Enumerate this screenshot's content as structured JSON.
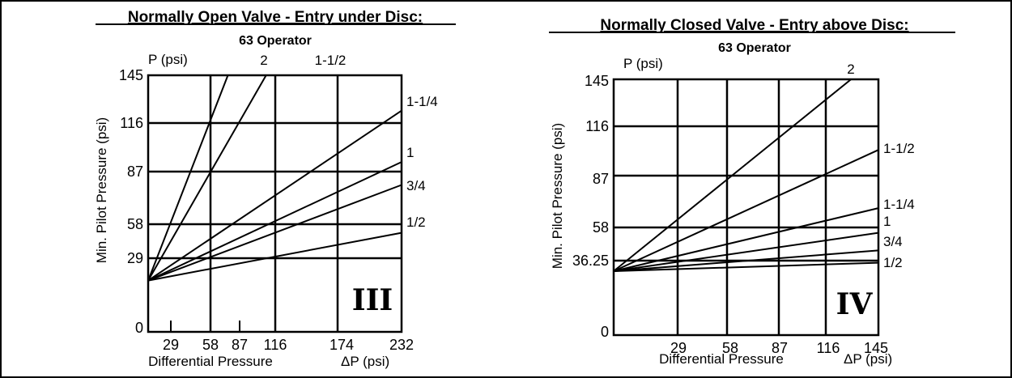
{
  "chart_data": [
    {
      "type": "line",
      "title": "Normally Open Valve - Entry under Disc:",
      "subtitle": "63  Operator",
      "ylabel": "Min. Pilot Pressure (psi)",
      "yunit": "P (psi)",
      "xlabel": "Differential Pressure",
      "xunit": "ΔP (psi)",
      "badge": "III",
      "xlim": [
        0,
        232
      ],
      "ylim": [
        0,
        145
      ],
      "x_ticks": [
        "29",
        "58",
        "87",
        "116",
        "174",
        "232"
      ],
      "y_ticks": [
        "145",
        "116",
        "87",
        "58",
        "29",
        "0"
      ],
      "series": [
        {
          "name": "2",
          "x": [
            0,
            73
          ],
          "y": [
            29,
            145
          ]
        },
        {
          "name": "1-1/2",
          "x": [
            0,
            108
          ],
          "y": [
            29,
            145
          ]
        },
        {
          "name": "1-1/4",
          "x": [
            0,
            232
          ],
          "y": [
            29,
            125
          ]
        },
        {
          "name": "1",
          "x": [
            0,
            232
          ],
          "y": [
            29,
            96
          ]
        },
        {
          "name": "3/4",
          "x": [
            0,
            232
          ],
          "y": [
            29,
            83
          ]
        },
        {
          "name": "1/2",
          "x": [
            0,
            232
          ],
          "y": [
            29,
            56
          ]
        }
      ]
    },
    {
      "type": "line",
      "title": "Normally Closed Valve - Entry above Disc:",
      "subtitle": "63  Operator",
      "ylabel": "Min. Pilot Pressure (psi)",
      "yunit": "P (psi)",
      "xlabel": "Differential Pressure",
      "xunit": "ΔP (psi)",
      "badge": "IV",
      "xlim": [
        0,
        145
      ],
      "ylim": [
        0,
        145
      ],
      "x_ticks": [
        "29",
        "58",
        "87",
        "116",
        "145"
      ],
      "y_ticks": [
        "145",
        "116",
        "87",
        "58",
        "36.25",
        "0"
      ],
      "series": [
        {
          "name": "2",
          "x": [
            0,
            130
          ],
          "y": [
            36.25,
            145
          ]
        },
        {
          "name": "1-1/2",
          "x": [
            0,
            145
          ],
          "y": [
            36.25,
            105
          ]
        },
        {
          "name": "1-1/4",
          "x": [
            0,
            145
          ],
          "y": [
            36.25,
            72
          ]
        },
        {
          "name": "1",
          "x": [
            0,
            145
          ],
          "y": [
            36.25,
            58
          ]
        },
        {
          "name": "3/4",
          "x": [
            0,
            145
          ],
          "y": [
            36.25,
            48
          ]
        },
        {
          "name": "1/2",
          "x": [
            0,
            145
          ],
          "y": [
            36.25,
            41
          ]
        }
      ]
    }
  ]
}
